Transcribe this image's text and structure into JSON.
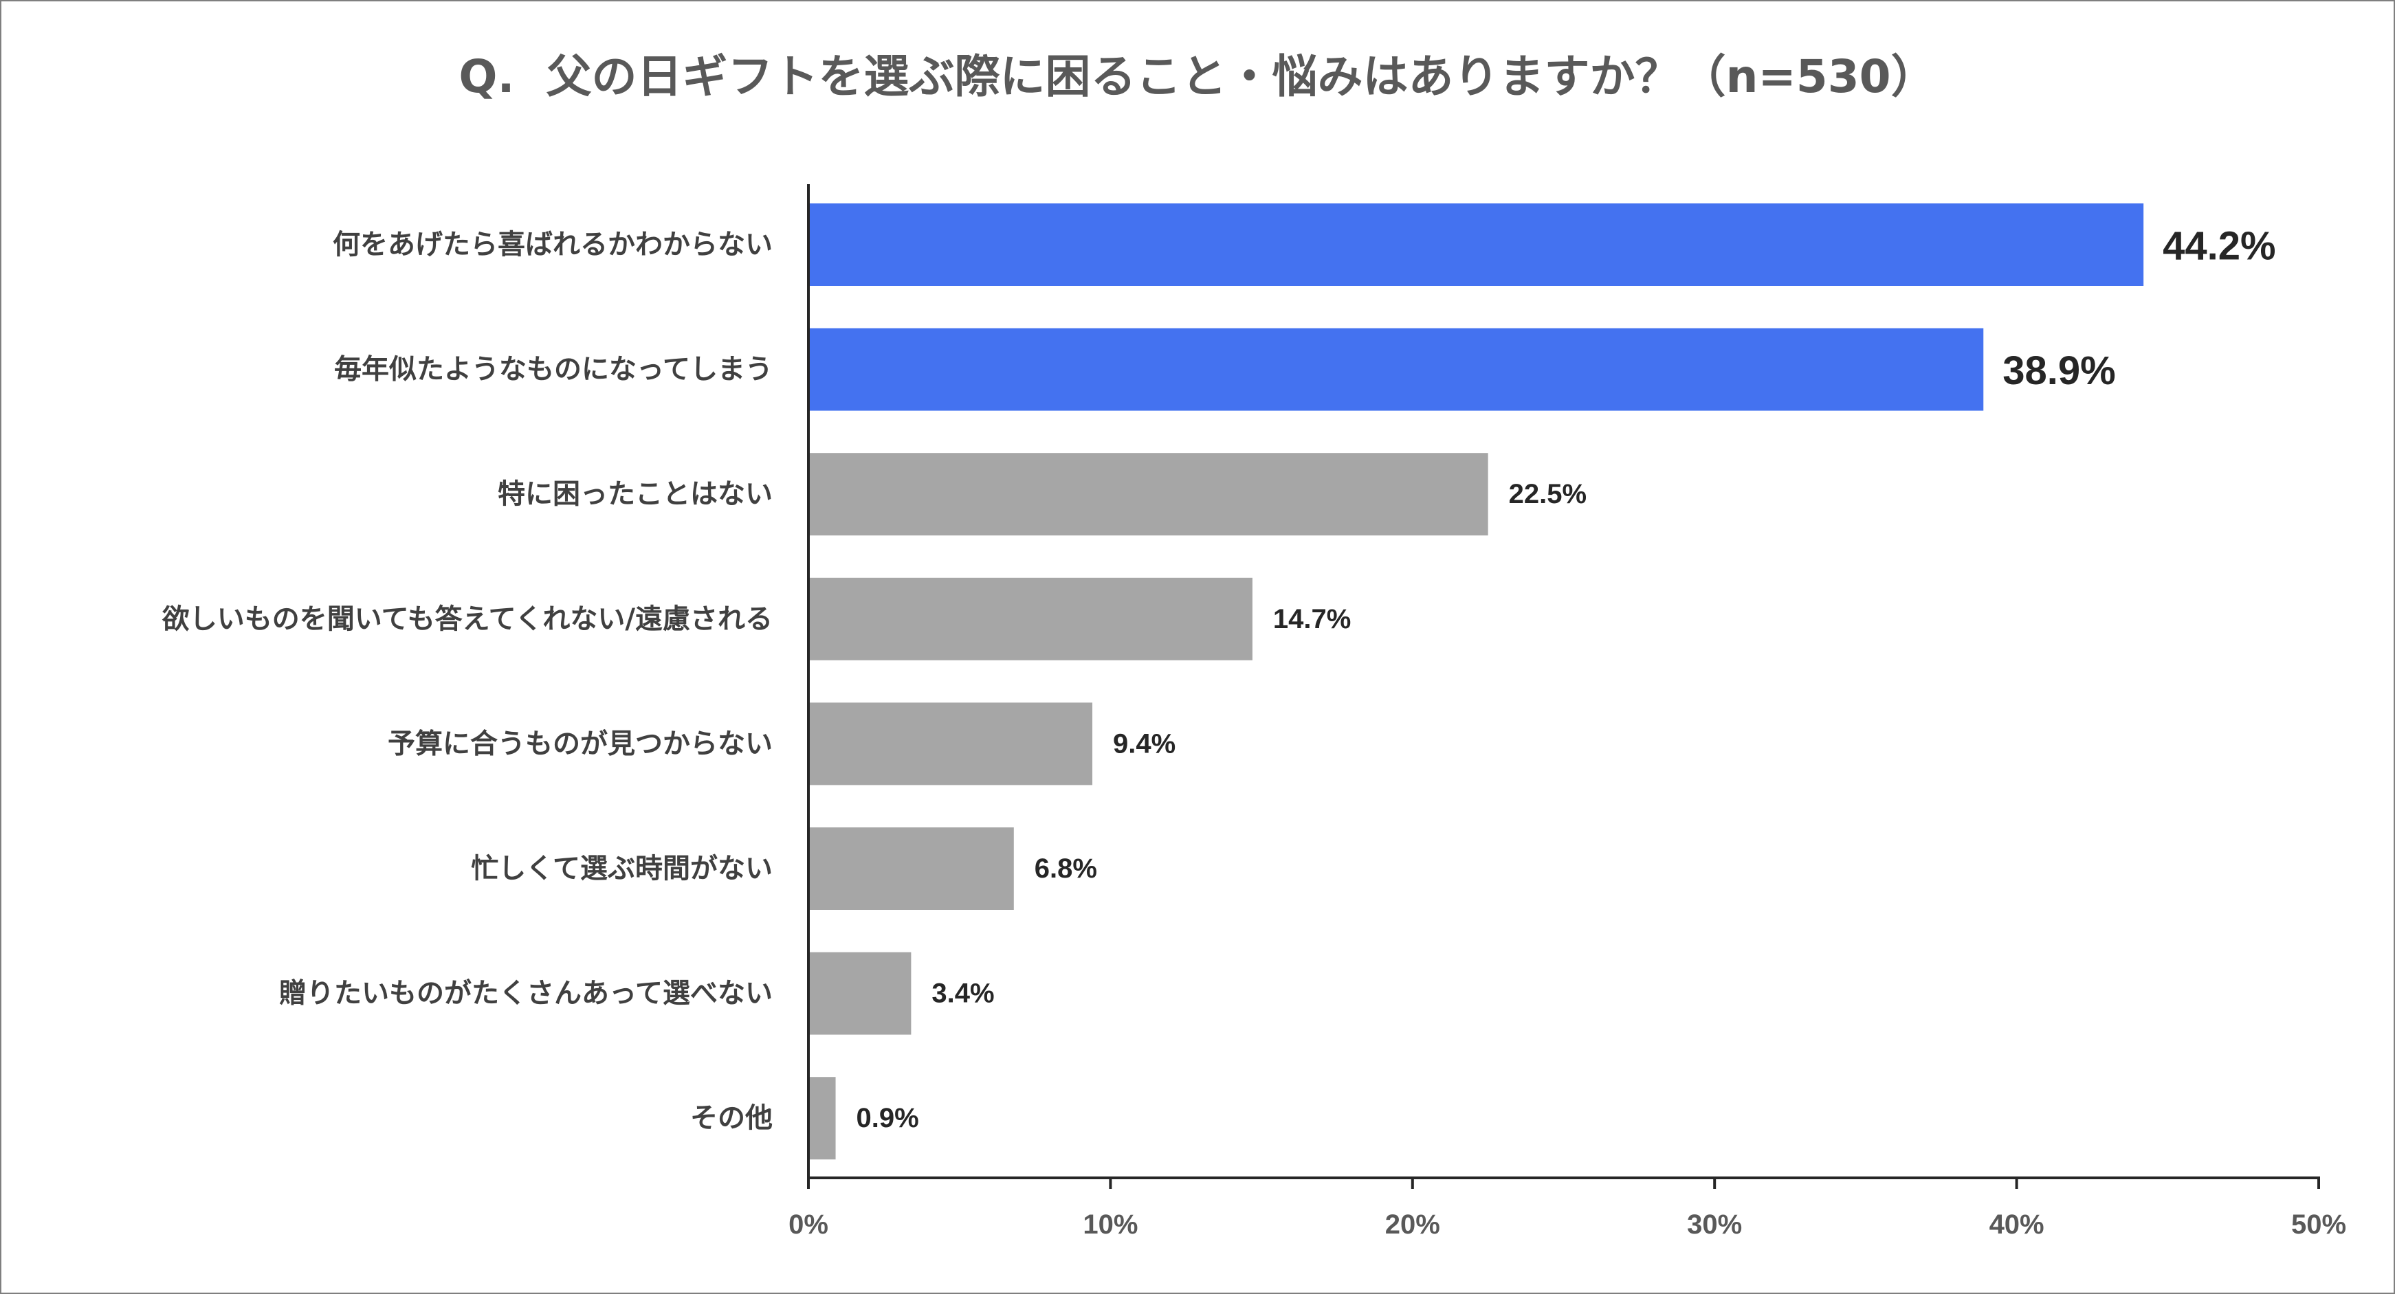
{
  "chart_data": {
    "type": "bar",
    "orientation": "horizontal",
    "title": "Q.  父の日ギフトを選ぶ際に困ること・悩みはありますか？（n=530）",
    "categories": [
      "何をあげたら喜ばれるかわからない",
      "毎年似たようなものになってしまう",
      "特に困ったことはない",
      "欲しいものを聞いても答えてくれない/遠慮される",
      "予算に合うものが見つからない",
      "忙しくて選ぶ時間がない",
      "贈りたいものがたくさんあって選べない",
      "その他"
    ],
    "values": [
      44.2,
      38.9,
      22.5,
      14.7,
      9.4,
      6.8,
      3.4,
      0.9
    ],
    "value_labels": [
      "44.2%",
      "38.9%",
      "22.5%",
      "14.7%",
      "9.4%",
      "6.8%",
      "3.4%",
      "0.9%"
    ],
    "highlighted": [
      true,
      true,
      false,
      false,
      false,
      false,
      false,
      false
    ],
    "colors": {
      "highlight": "#4472F0",
      "normal": "#A6A6A6",
      "axis": "#262626"
    },
    "xlim": [
      0,
      50
    ],
    "x_ticks": [
      0,
      10,
      20,
      30,
      40,
      50
    ],
    "x_tick_labels": [
      "0%",
      "10%",
      "20%",
      "30%",
      "40%",
      "50%"
    ],
    "xlabel": "",
    "ylabel": "",
    "grid": false,
    "legend": "none"
  }
}
